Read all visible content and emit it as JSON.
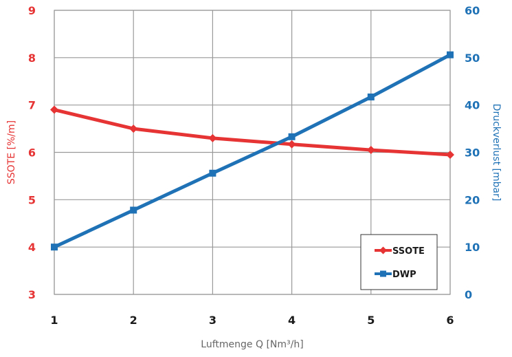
{
  "chart_data": {
    "type": "line",
    "x": [
      1,
      2,
      3,
      4,
      5,
      6
    ],
    "xlabel": "Luftmenge Q [Nm³/h]",
    "ylabel_left": "SSOTE [%/m]",
    "ylabel_right": "Druckverlust [mbar]",
    "xlim": [
      1,
      6
    ],
    "ylim_left": [
      3,
      9
    ],
    "ylim_right": [
      0,
      60
    ],
    "x_ticks": [
      "1",
      "2",
      "3",
      "4",
      "5",
      "6"
    ],
    "y_left_ticks": [
      "3",
      "4",
      "5",
      "6",
      "7",
      "8",
      "9"
    ],
    "y_right_ticks": [
      "0",
      "10",
      "20",
      "30",
      "40",
      "50",
      "60"
    ],
    "grid": true,
    "legend_placement": "bottom-right",
    "series": [
      {
        "name": "SSOTE",
        "axis": "left",
        "marker": "diamond",
        "color": "#e63333",
        "values": [
          6.9,
          6.5,
          6.3,
          6.17,
          6.05,
          5.95
        ]
      },
      {
        "name": "DWP",
        "axis": "right",
        "marker": "square",
        "color": "#1f72b6",
        "values": [
          10,
          17.8,
          25.6,
          33.3,
          41.7,
          50.6
        ]
      }
    ],
    "colors": {
      "left_axis": "#e63333",
      "right_axis": "#1f72b6",
      "x_axis": "#1a1a1a",
      "xlabel": "#666666",
      "grid": "#999999"
    }
  }
}
